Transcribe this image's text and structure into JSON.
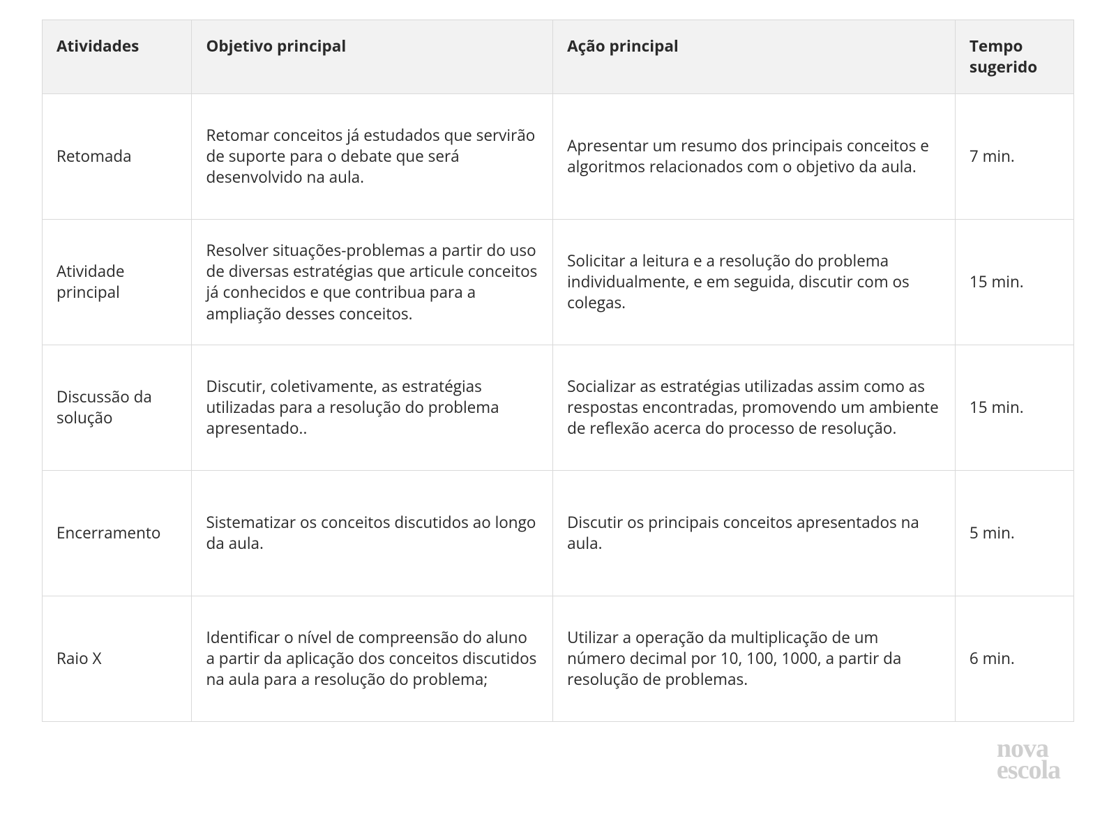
{
  "table": {
    "type": "table",
    "columns": [
      "Atividades",
      "Objetivo principal",
      "Ação principal",
      "Tempo sugerido"
    ],
    "column_widths_pct": [
      14.5,
      35,
      39,
      11.5
    ],
    "header_bg": "#f2f2f2",
    "row_bg": "#ffffff",
    "border_color": "#d9d9d9",
    "text_color": "#2a2a2a",
    "font_size_pt": 17,
    "rows": [
      {
        "atividade": "Retomada",
        "objetivo": "Retomar conceitos já estudados que servirão de suporte para o debate que será desenvolvido na aula.",
        "acao": "Apresentar um resumo dos principais conceitos e algoritmos relacionados com o objetivo da aula.",
        "tempo": "7 min."
      },
      {
        "atividade": "Atividade principal",
        "objetivo": "Resolver situações-problemas a partir do uso de diversas estratégias que articule conceitos já conhecidos e que contribua para a ampliação desses conceitos.",
        "acao": "Solicitar a leitura e a resolução do problema individualmente, e em seguida, discutir com os colegas.",
        "tempo": "15 min."
      },
      {
        "atividade": "Discussão da solução",
        "objetivo": "Discutir, coletivamente, as estratégias utilizadas para a resolução do problema apresentado..",
        "acao": "Socializar as estratégias utilizadas assim como as respostas encontradas, promovendo um ambiente de reflexão acerca do processo de resolução.",
        "tempo": "15 min."
      },
      {
        "atividade": "Encerramento",
        "objetivo": "Sistematizar os conceitos discutidos ao longo da aula.",
        "acao": "Discutir os principais conceitos apresentados na aula.",
        "tempo": "5 min."
      },
      {
        "atividade": "Raio X",
        "objetivo": "Identificar o nível de compreensão do aluno a partir da aplicação dos conceitos discutidos na aula para a resolução do problema;",
        "acao": "Utilizar a operação da multiplicação de um número decimal por 10, 100, 1000, a partir da resolução de problemas.",
        "tempo": "6 min."
      }
    ]
  },
  "watermark": {
    "line1": "nova",
    "line2": "escola",
    "color": "#cfcfcf"
  }
}
